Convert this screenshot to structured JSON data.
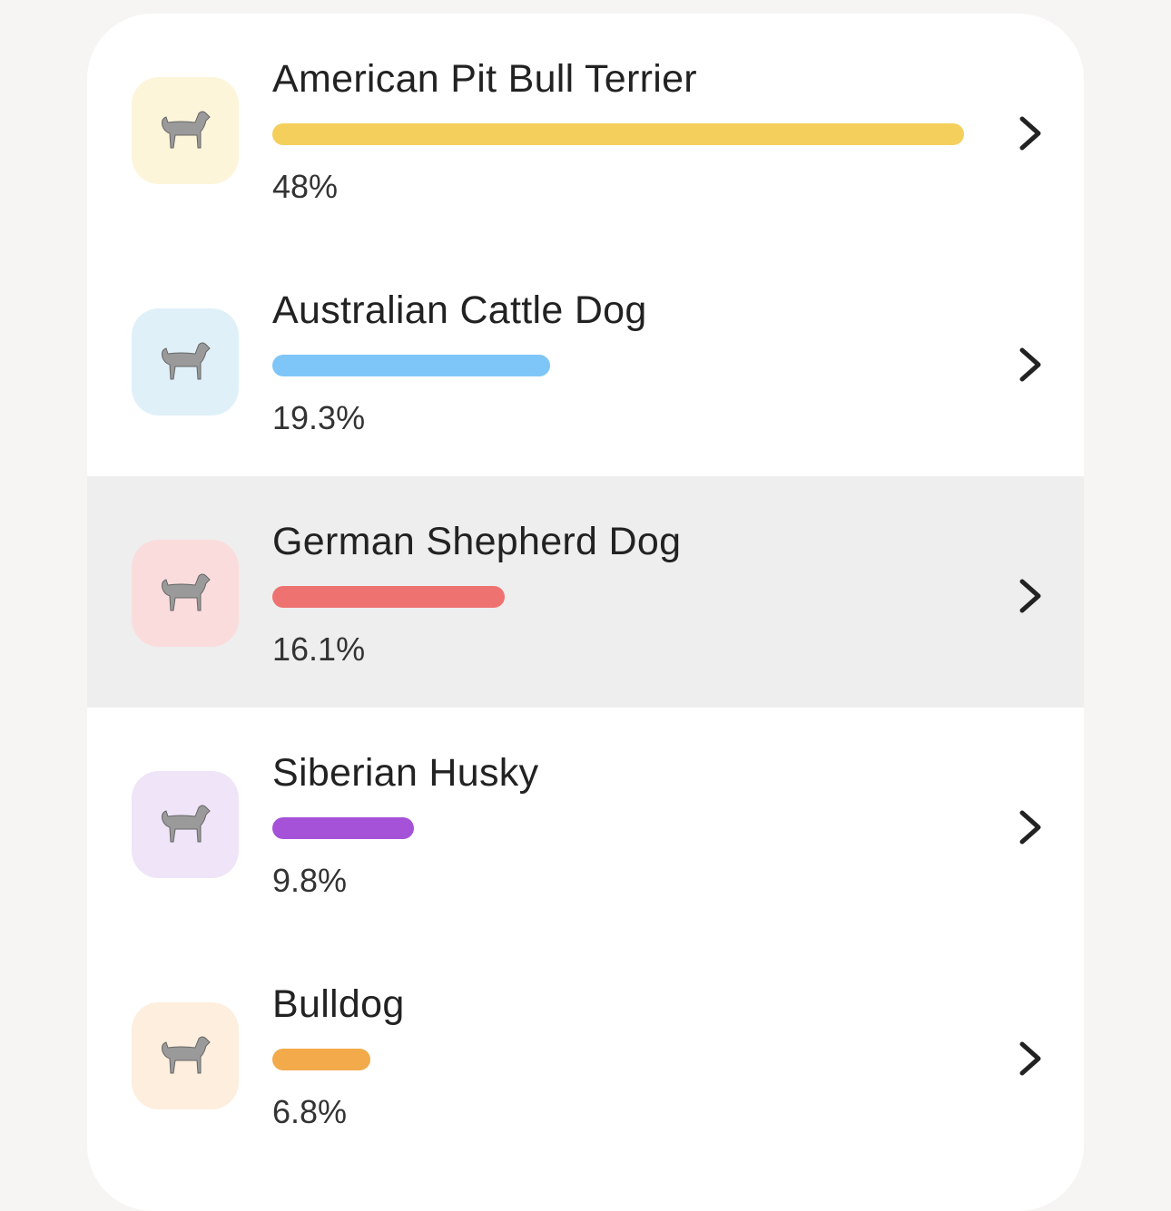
{
  "breeds": {
    "items": [
      {
        "name": "American Pit Bull Terrier",
        "value": 48,
        "value_label": "48%",
        "color": "#f4cf5c",
        "icon_bg": "#fdf5da"
      },
      {
        "name": "Australian Cattle Dog",
        "value": 19.3,
        "value_label": "19.3%",
        "color": "#7fc6f8",
        "icon_bg": "#dff0f9"
      },
      {
        "name": "German Shepherd Dog",
        "value": 16.1,
        "value_label": "16.1%",
        "color": "#ee7370",
        "icon_bg": "#fbdcdc"
      },
      {
        "name": "Siberian Husky",
        "value": 9.8,
        "value_label": "9.8%",
        "color": "#a552d8",
        "icon_bg": "#efe4f8"
      },
      {
        "name": "Bulldog",
        "value": 6.8,
        "value_label": "6.8%",
        "color": "#f2aa4a",
        "icon_bg": "#fdeedd"
      }
    ]
  }
}
